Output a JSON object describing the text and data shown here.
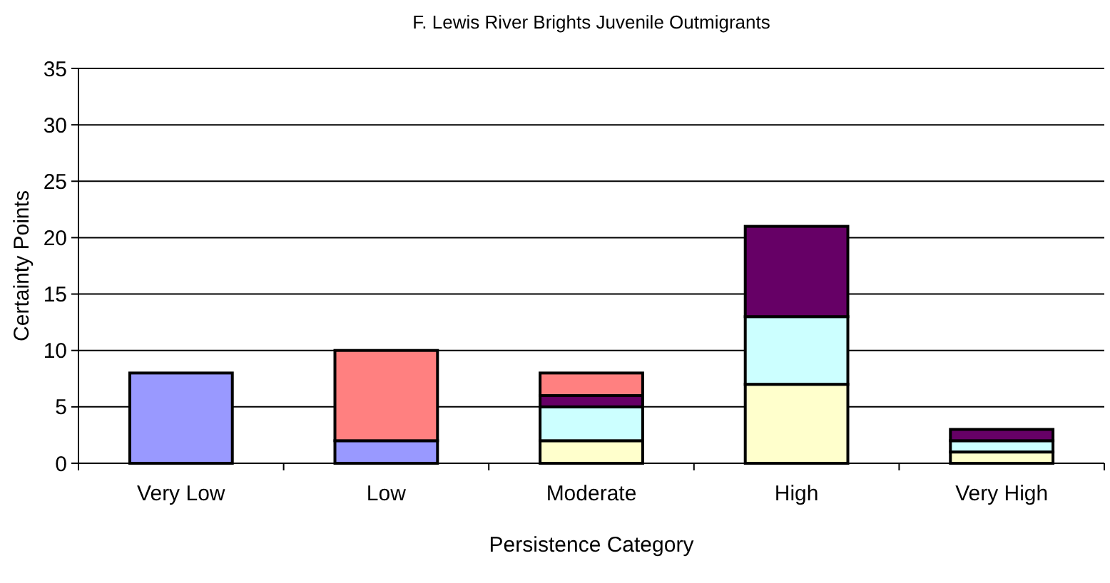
{
  "chart_data": {
    "type": "bar",
    "title": "F. Lewis River Brights Juvenile Outmigrants",
    "xlabel": "Persistence Category",
    "ylabel": "Certainty Points",
    "categories": [
      "Very Low",
      "Low",
      "Moderate",
      "High",
      "Very High"
    ],
    "stacked": true,
    "series": [
      {
        "color": "#9999ff",
        "values": [
          8,
          2,
          0,
          0,
          0
        ]
      },
      {
        "color": "#ffffcc",
        "values": [
          0,
          0,
          2,
          7,
          1
        ]
      },
      {
        "color": "#ccffff",
        "values": [
          0,
          0,
          3,
          6,
          1
        ]
      },
      {
        "color": "#660066",
        "values": [
          0,
          0,
          1,
          8,
          1
        ]
      },
      {
        "color": "#ff8080",
        "values": [
          0,
          8,
          2,
          0,
          0
        ]
      }
    ],
    "ylim": [
      0,
      35
    ],
    "yticks": [
      0,
      5,
      10,
      15,
      20,
      25,
      30,
      35
    ],
    "grid": "y"
  }
}
